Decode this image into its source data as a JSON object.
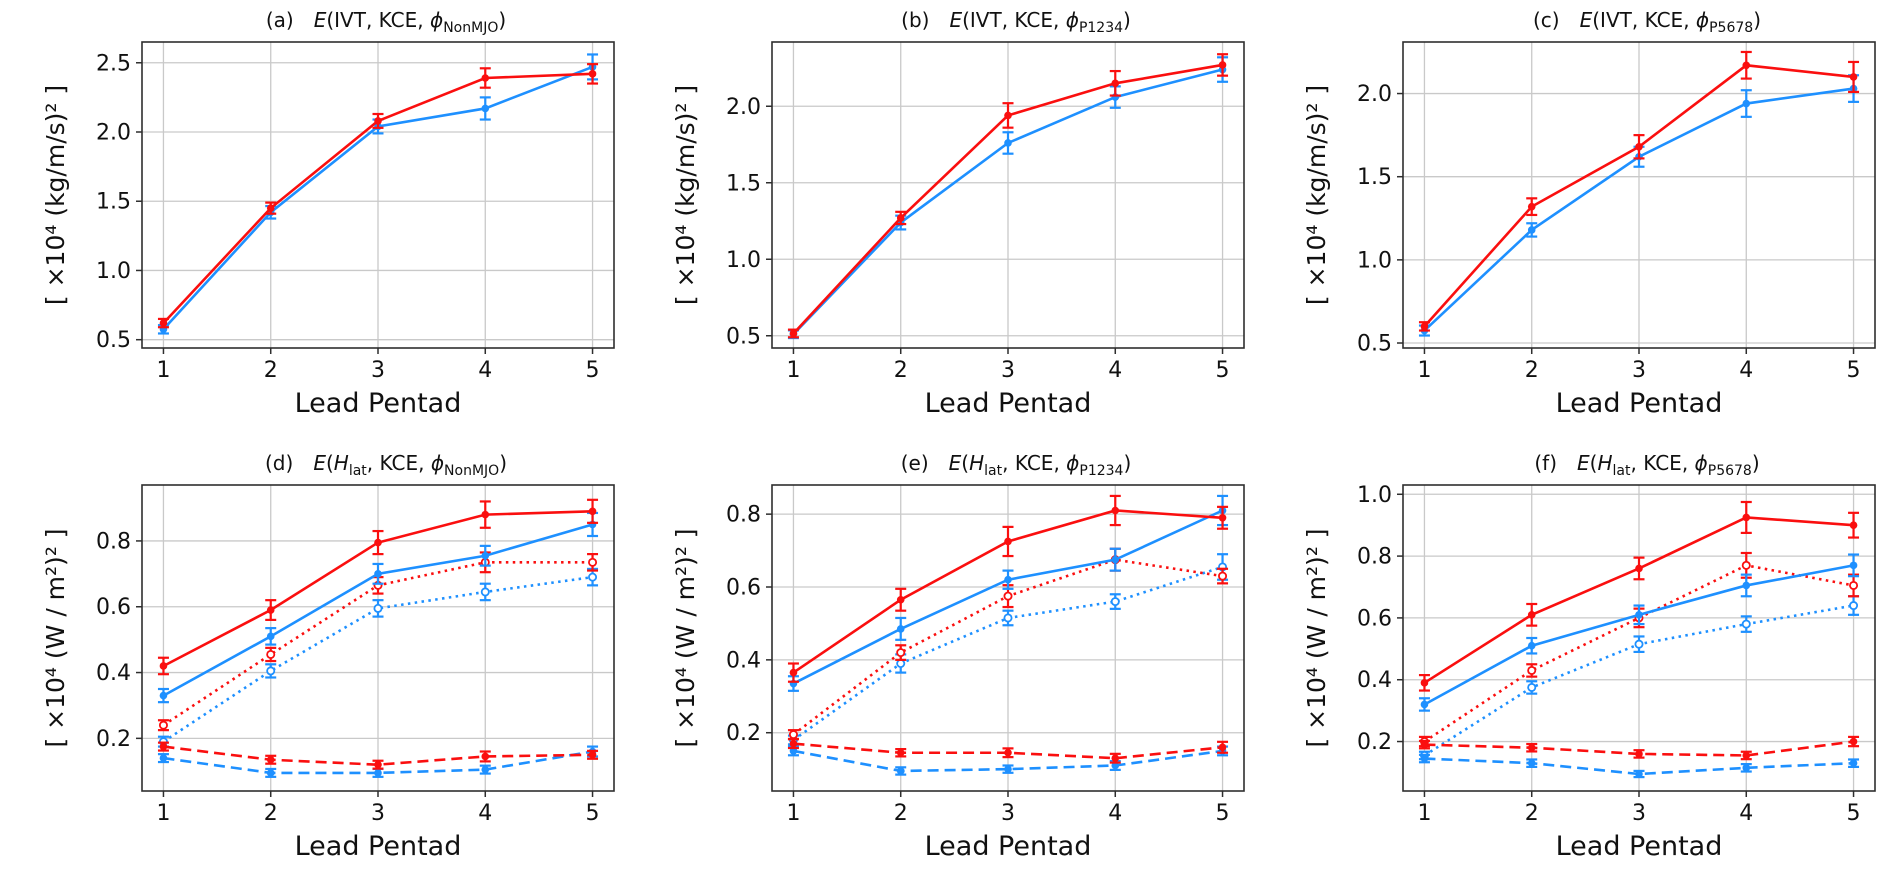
{
  "figure": {
    "colors": {
      "red": "#fa0f0f",
      "blue": "#1e90ff",
      "grid": "#c9c9c9",
      "frame": "#2e2e2e",
      "text": "#111111",
      "background": "#ffffff"
    },
    "styles": {
      "solid": {
        "dash": "",
        "open": false
      },
      "dotted": {
        "dash": "2.5 4.4",
        "open": true
      },
      "dashed": {
        "dash": "11 6",
        "open": false
      }
    }
  },
  "chart_data": [
    {
      "id": "a",
      "type": "line",
      "title": {
        "index": "(a)",
        "func": "E",
        "open": "(",
        "variable": "IVT",
        "var_sub": "",
        "separator": ", KCE, ",
        "phi": "ϕ",
        "phi_sub": "NonMJO",
        "close": ")"
      },
      "xlabel": "Lead Pentad",
      "ylabel": "[ ×10⁴ (kg/m/s)² ]",
      "x": [
        1,
        2,
        3,
        4,
        5
      ],
      "xlim": [
        0.8,
        5.2
      ],
      "ylim": [
        0.44,
        2.65
      ],
      "yticks": [
        0.5,
        1.0,
        1.5,
        2.0,
        2.5
      ],
      "grid": true,
      "legend": "none",
      "series": [
        {
          "name": "blue-solid",
          "color": "blue",
          "style": "solid",
          "values": [
            0.575,
            1.42,
            2.04,
            2.17,
            2.47
          ],
          "errors": [
            0.03,
            0.045,
            0.05,
            0.08,
            0.09
          ]
        },
        {
          "name": "red-solid",
          "color": "red",
          "style": "solid",
          "values": [
            0.62,
            1.45,
            2.08,
            2.39,
            2.42
          ],
          "errors": [
            0.03,
            0.04,
            0.05,
            0.07,
            0.07
          ]
        }
      ]
    },
    {
      "id": "b",
      "type": "line",
      "title": {
        "index": "(b)",
        "func": "E",
        "open": "(",
        "variable": "IVT",
        "var_sub": "",
        "separator": ", KCE, ",
        "phi": "ϕ",
        "phi_sub": "P1234",
        "close": ")"
      },
      "xlabel": "Lead Pentad",
      "ylabel": "[ ×10⁴ (kg/m/s)² ]",
      "x": [
        1,
        2,
        3,
        4,
        5
      ],
      "xlim": [
        0.8,
        5.2
      ],
      "ylim": [
        0.42,
        2.42
      ],
      "yticks": [
        0.5,
        1.0,
        1.5,
        2.0
      ],
      "grid": true,
      "legend": "none",
      "series": [
        {
          "name": "blue-solid",
          "color": "blue",
          "style": "solid",
          "values": [
            0.51,
            1.24,
            1.76,
            2.06,
            2.24
          ],
          "errors": [
            0.025,
            0.045,
            0.07,
            0.07,
            0.08
          ]
        },
        {
          "name": "red-solid",
          "color": "red",
          "style": "solid",
          "values": [
            0.515,
            1.27,
            1.94,
            2.15,
            2.27
          ],
          "errors": [
            0.025,
            0.04,
            0.08,
            0.08,
            0.07
          ]
        }
      ]
    },
    {
      "id": "c",
      "type": "line",
      "title": {
        "index": "(c)",
        "func": "E",
        "open": "(",
        "variable": "IVT",
        "var_sub": "",
        "separator": ", KCE, ",
        "phi": "ϕ",
        "phi_sub": "P5678",
        "close": ")"
      },
      "xlabel": "Lead Pentad",
      "ylabel": "[ ×10⁴ (kg/m/s)² ]",
      "x": [
        1,
        2,
        3,
        4,
        5
      ],
      "xlim": [
        0.8,
        5.2
      ],
      "ylim": [
        0.47,
        2.31
      ],
      "yticks": [
        0.5,
        1.0,
        1.5,
        2.0
      ],
      "grid": true,
      "legend": "none",
      "series": [
        {
          "name": "blue-solid",
          "color": "blue",
          "style": "solid",
          "values": [
            0.575,
            1.18,
            1.62,
            1.94,
            2.03
          ],
          "errors": [
            0.03,
            0.04,
            0.06,
            0.08,
            0.08
          ]
        },
        {
          "name": "red-solid",
          "color": "red",
          "style": "solid",
          "values": [
            0.6,
            1.32,
            1.68,
            2.17,
            2.1
          ],
          "errors": [
            0.025,
            0.05,
            0.07,
            0.08,
            0.09
          ]
        }
      ]
    },
    {
      "id": "d",
      "type": "line",
      "title": {
        "index": "(d)",
        "func": "E",
        "open": "(",
        "variable": "H",
        "var_sub": "lat",
        "separator": ", KCE, ",
        "phi": "ϕ",
        "phi_sub": "NonMJO",
        "close": ")"
      },
      "xlabel": "Lead Pentad",
      "ylabel": "[ ×10⁴ (W / m²)² ]",
      "x": [
        1,
        2,
        3,
        4,
        5
      ],
      "xlim": [
        0.8,
        5.2
      ],
      "ylim": [
        0.04,
        0.97
      ],
      "yticks": [
        0.2,
        0.4,
        0.6,
        0.8
      ],
      "grid": true,
      "legend": "none",
      "series": [
        {
          "name": "blue-dotted",
          "color": "blue",
          "style": "dotted",
          "values": [
            0.19,
            0.405,
            0.595,
            0.645,
            0.69
          ],
          "errors": [
            0.015,
            0.02,
            0.025,
            0.025,
            0.025
          ]
        },
        {
          "name": "red-dotted",
          "color": "red",
          "style": "dotted",
          "values": [
            0.24,
            0.455,
            0.665,
            0.735,
            0.735
          ],
          "errors": [
            0.015,
            0.02,
            0.025,
            0.03,
            0.025
          ]
        },
        {
          "name": "blue-dashed",
          "color": "blue",
          "style": "dashed",
          "values": [
            0.14,
            0.095,
            0.095,
            0.105,
            0.16
          ],
          "errors": [
            0.012,
            0.012,
            0.012,
            0.012,
            0.015
          ]
        },
        {
          "name": "red-dashed",
          "color": "red",
          "style": "dashed",
          "values": [
            0.175,
            0.135,
            0.12,
            0.145,
            0.15
          ],
          "errors": [
            0.012,
            0.012,
            0.012,
            0.015,
            0.012
          ]
        },
        {
          "name": "blue-solid",
          "color": "blue",
          "style": "solid",
          "values": [
            0.33,
            0.51,
            0.7,
            0.755,
            0.85
          ],
          "errors": [
            0.02,
            0.025,
            0.03,
            0.03,
            0.035
          ]
        },
        {
          "name": "red-solid",
          "color": "red",
          "style": "solid",
          "values": [
            0.42,
            0.59,
            0.795,
            0.88,
            0.89
          ],
          "errors": [
            0.025,
            0.03,
            0.035,
            0.04,
            0.035
          ]
        }
      ]
    },
    {
      "id": "e",
      "type": "line",
      "title": {
        "index": "(e)",
        "func": "E",
        "open": "(",
        "variable": "H",
        "var_sub": "lat",
        "separator": ", KCE, ",
        "phi": "ϕ",
        "phi_sub": "P1234",
        "close": ")"
      },
      "xlabel": "Lead Pentad",
      "ylabel": "[ ×10⁴ (W / m²)² ]",
      "x": [
        1,
        2,
        3,
        4,
        5
      ],
      "xlim": [
        0.8,
        5.2
      ],
      "ylim": [
        0.04,
        0.88
      ],
      "yticks": [
        0.2,
        0.4,
        0.6,
        0.8
      ],
      "grid": true,
      "legend": "none",
      "series": [
        {
          "name": "blue-dotted",
          "color": "blue",
          "style": "dotted",
          "values": [
            0.18,
            0.39,
            0.515,
            0.56,
            0.655
          ],
          "errors": [
            0.012,
            0.025,
            0.02,
            0.02,
            0.035
          ]
        },
        {
          "name": "red-dotted",
          "color": "red",
          "style": "dotted",
          "values": [
            0.195,
            0.42,
            0.575,
            0.675,
            0.63
          ],
          "errors": [
            0.012,
            0.02,
            0.03,
            0.03,
            0.02
          ]
        },
        {
          "name": "blue-dashed",
          "color": "blue",
          "style": "dashed",
          "values": [
            0.15,
            0.095,
            0.1,
            0.11,
            0.15
          ],
          "errors": [
            0.012,
            0.01,
            0.01,
            0.012,
            0.012
          ]
        },
        {
          "name": "red-dashed",
          "color": "red",
          "style": "dashed",
          "values": [
            0.17,
            0.145,
            0.145,
            0.13,
            0.16
          ],
          "errors": [
            0.012,
            0.01,
            0.012,
            0.012,
            0.015
          ]
        },
        {
          "name": "blue-solid",
          "color": "blue",
          "style": "solid",
          "values": [
            0.335,
            0.485,
            0.62,
            0.675,
            0.81
          ],
          "errors": [
            0.02,
            0.03,
            0.025,
            0.03,
            0.04
          ]
        },
        {
          "name": "red-solid",
          "color": "red",
          "style": "solid",
          "values": [
            0.365,
            0.565,
            0.725,
            0.81,
            0.79
          ],
          "errors": [
            0.025,
            0.03,
            0.04,
            0.04,
            0.03
          ]
        }
      ]
    },
    {
      "id": "f",
      "type": "line",
      "title": {
        "index": "(f)",
        "func": "E",
        "open": "(",
        "variable": "H",
        "var_sub": "lat",
        "separator": ", KCE, ",
        "phi": "ϕ",
        "phi_sub": "P5678",
        "close": ")"
      },
      "xlabel": "Lead Pentad",
      "ylabel": "[ ×10⁴ (W / m²)² ]",
      "x": [
        1,
        2,
        3,
        4,
        5
      ],
      "xlim": [
        0.8,
        5.2
      ],
      "ylim": [
        0.04,
        1.03
      ],
      "yticks": [
        0.2,
        0.4,
        0.6,
        0.8,
        1.0
      ],
      "grid": true,
      "legend": "none",
      "series": [
        {
          "name": "blue-dotted",
          "color": "blue",
          "style": "dotted",
          "values": [
            0.155,
            0.375,
            0.515,
            0.58,
            0.64
          ],
          "errors": [
            0.012,
            0.02,
            0.025,
            0.025,
            0.03
          ]
        },
        {
          "name": "red-dotted",
          "color": "red",
          "style": "dotted",
          "values": [
            0.2,
            0.43,
            0.6,
            0.77,
            0.705
          ],
          "errors": [
            0.015,
            0.02,
            0.03,
            0.04,
            0.035
          ]
        },
        {
          "name": "blue-dashed",
          "color": "blue",
          "style": "dashed",
          "values": [
            0.145,
            0.13,
            0.095,
            0.115,
            0.13
          ],
          "errors": [
            0.012,
            0.012,
            0.01,
            0.012,
            0.012
          ]
        },
        {
          "name": "red-dashed",
          "color": "red",
          "style": "dashed",
          "values": [
            0.19,
            0.18,
            0.16,
            0.155,
            0.2
          ],
          "errors": [
            0.012,
            0.012,
            0.012,
            0.012,
            0.015
          ]
        },
        {
          "name": "blue-solid",
          "color": "blue",
          "style": "solid",
          "values": [
            0.32,
            0.51,
            0.61,
            0.705,
            0.77
          ],
          "errors": [
            0.02,
            0.025,
            0.03,
            0.035,
            0.035
          ]
        },
        {
          "name": "red-solid",
          "color": "red",
          "style": "solid",
          "values": [
            0.39,
            0.61,
            0.76,
            0.925,
            0.9
          ],
          "errors": [
            0.025,
            0.035,
            0.035,
            0.05,
            0.04
          ]
        }
      ]
    }
  ]
}
